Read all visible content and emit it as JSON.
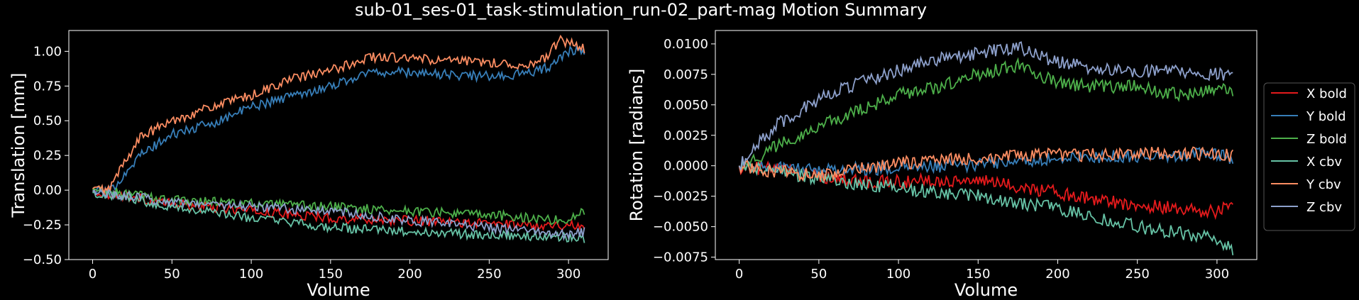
{
  "title": "sub-01_ses-01_task-stimulation_run-02_part-mag Motion Summary",
  "chart_data": [
    {
      "type": "line",
      "xlabel": "Volume",
      "ylabel": "Translation [mm]",
      "xlim": [
        -15,
        325
      ],
      "ylim": [
        -0.5,
        1.15
      ],
      "xticks": [
        0,
        50,
        100,
        150,
        200,
        250,
        300
      ],
      "xtick_labels": [
        "0",
        "50",
        "100",
        "150",
        "200",
        "250",
        "300"
      ],
      "yticks": [
        -0.5,
        -0.25,
        0.0,
        0.25,
        0.5,
        0.75,
        1.0
      ],
      "ytick_labels": [
        "−0.50",
        "−0.25",
        "0.00",
        "0.25",
        "0.50",
        "0.75",
        "1.00"
      ],
      "grid": false,
      "series": [
        {
          "name": "X bold",
          "color": "#e41a1c",
          "x": [
            0,
            20,
            50,
            100,
            150,
            200,
            250,
            290,
            310
          ],
          "values": [
            -0.01,
            -0.04,
            -0.1,
            -0.15,
            -0.2,
            -0.22,
            -0.24,
            -0.25,
            -0.26
          ]
        },
        {
          "name": "Y bold",
          "color": "#377eb8",
          "x": [
            0,
            10,
            20,
            30,
            50,
            75,
            100,
            125,
            150,
            175,
            200,
            225,
            250,
            275,
            290,
            300,
            310
          ],
          "values": [
            0.0,
            -0.02,
            0.12,
            0.25,
            0.4,
            0.48,
            0.6,
            0.68,
            0.75,
            0.85,
            0.85,
            0.83,
            0.82,
            0.84,
            0.9,
            1.0,
            1.0
          ]
        },
        {
          "name": "Z bold",
          "color": "#4daf4a",
          "x": [
            0,
            25,
            50,
            75,
            100,
            150,
            200,
            250,
            300,
            310
          ],
          "values": [
            0.0,
            -0.03,
            -0.07,
            -0.08,
            -0.1,
            -0.12,
            -0.15,
            -0.18,
            -0.22,
            -0.15
          ]
        },
        {
          "name": "X cbv",
          "color": "#66c2a5",
          "x": [
            0,
            25,
            50,
            100,
            150,
            200,
            250,
            300,
            310
          ],
          "values": [
            -0.02,
            -0.06,
            -0.12,
            -0.2,
            -0.27,
            -0.3,
            -0.32,
            -0.34,
            -0.35
          ]
        },
        {
          "name": "Y cbv",
          "color": "#fc8d62",
          "x": [
            0,
            10,
            20,
            30,
            50,
            75,
            100,
            125,
            150,
            175,
            200,
            225,
            250,
            275,
            285,
            295,
            310
          ],
          "values": [
            0.01,
            0.0,
            0.2,
            0.38,
            0.5,
            0.6,
            0.68,
            0.8,
            0.86,
            0.96,
            0.95,
            0.93,
            0.92,
            0.9,
            0.95,
            1.08,
            1.02
          ]
        },
        {
          "name": "Z cbv",
          "color": "#8da0cb",
          "x": [
            0,
            25,
            50,
            75,
            100,
            150,
            200,
            250,
            300,
            310
          ],
          "values": [
            -0.01,
            -0.05,
            -0.08,
            -0.1,
            -0.12,
            -0.15,
            -0.22,
            -0.27,
            -0.32,
            -0.3
          ]
        }
      ]
    },
    {
      "type": "line",
      "xlabel": "Volume",
      "ylabel": "Rotation [radians]",
      "xlim": [
        -15,
        325
      ],
      "ylim": [
        -0.0077,
        0.0111
      ],
      "xticks": [
        0,
        50,
        100,
        150,
        200,
        250,
        300
      ],
      "xtick_labels": [
        "0",
        "50",
        "100",
        "150",
        "200",
        "250",
        "300"
      ],
      "yticks": [
        -0.0075,
        -0.005,
        -0.0025,
        0.0,
        0.0025,
        0.005,
        0.0075,
        0.01
      ],
      "ytick_labels": [
        "−0.0075",
        "−0.0050",
        "−0.0025",
        "0.0000",
        "0.0025",
        "0.0050",
        "0.0075",
        "0.0100"
      ],
      "grid": false,
      "legend": "right-outside",
      "series": [
        {
          "name": "X bold",
          "color": "#e41a1c",
          "x": [
            0,
            25,
            50,
            75,
            100,
            125,
            150,
            175,
            200,
            225,
            250,
            275,
            300,
            310
          ],
          "values": [
            -0.0001,
            -0.0003,
            -0.0008,
            -0.0013,
            -0.0013,
            -0.0012,
            -0.0012,
            -0.0017,
            -0.0022,
            -0.0028,
            -0.0032,
            -0.0035,
            -0.0038,
            -0.0028
          ]
        },
        {
          "name": "Y bold",
          "color": "#377eb8",
          "x": [
            0,
            50,
            100,
            150,
            200,
            250,
            300,
            310
          ],
          "values": [
            0.0,
            -0.0003,
            -0.0002,
            0.0001,
            0.0006,
            0.0008,
            0.001,
            0.0006
          ]
        },
        {
          "name": "Z bold",
          "color": "#4daf4a",
          "x": [
            0,
            10,
            25,
            50,
            75,
            100,
            125,
            150,
            175,
            200,
            225,
            250,
            275,
            300,
            310
          ],
          "values": [
            0.0,
            0.0005,
            0.0018,
            0.0032,
            0.0045,
            0.0058,
            0.0065,
            0.0075,
            0.0082,
            0.0068,
            0.0065,
            0.0065,
            0.0058,
            0.0062,
            0.0062
          ]
        },
        {
          "name": "X cbv",
          "color": "#66c2a5",
          "x": [
            0,
            25,
            50,
            75,
            100,
            125,
            150,
            175,
            200,
            225,
            250,
            275,
            300,
            310
          ],
          "values": [
            0.0,
            -0.0005,
            -0.001,
            -0.0015,
            -0.0018,
            -0.0022,
            -0.0025,
            -0.003,
            -0.0035,
            -0.0042,
            -0.005,
            -0.0055,
            -0.006,
            -0.0068
          ]
        },
        {
          "name": "Y cbv",
          "color": "#fc8d62",
          "x": [
            0,
            25,
            50,
            75,
            100,
            125,
            150,
            175,
            200,
            225,
            250,
            275,
            300,
            310
          ],
          "values": [
            0.0,
            -0.0005,
            -0.0008,
            -0.0003,
            0.0002,
            0.0005,
            0.0006,
            0.0008,
            0.0009,
            0.0009,
            0.001,
            0.001,
            0.001,
            0.0008
          ]
        },
        {
          "name": "Z cbv",
          "color": "#8da0cb",
          "x": [
            0,
            10,
            25,
            50,
            75,
            100,
            125,
            150,
            175,
            200,
            225,
            250,
            275,
            300,
            310
          ],
          "values": [
            0.0,
            0.0015,
            0.0035,
            0.0055,
            0.0068,
            0.0078,
            0.0088,
            0.0092,
            0.0098,
            0.0085,
            0.008,
            0.0078,
            0.0078,
            0.0075,
            0.0072
          ]
        }
      ]
    }
  ]
}
